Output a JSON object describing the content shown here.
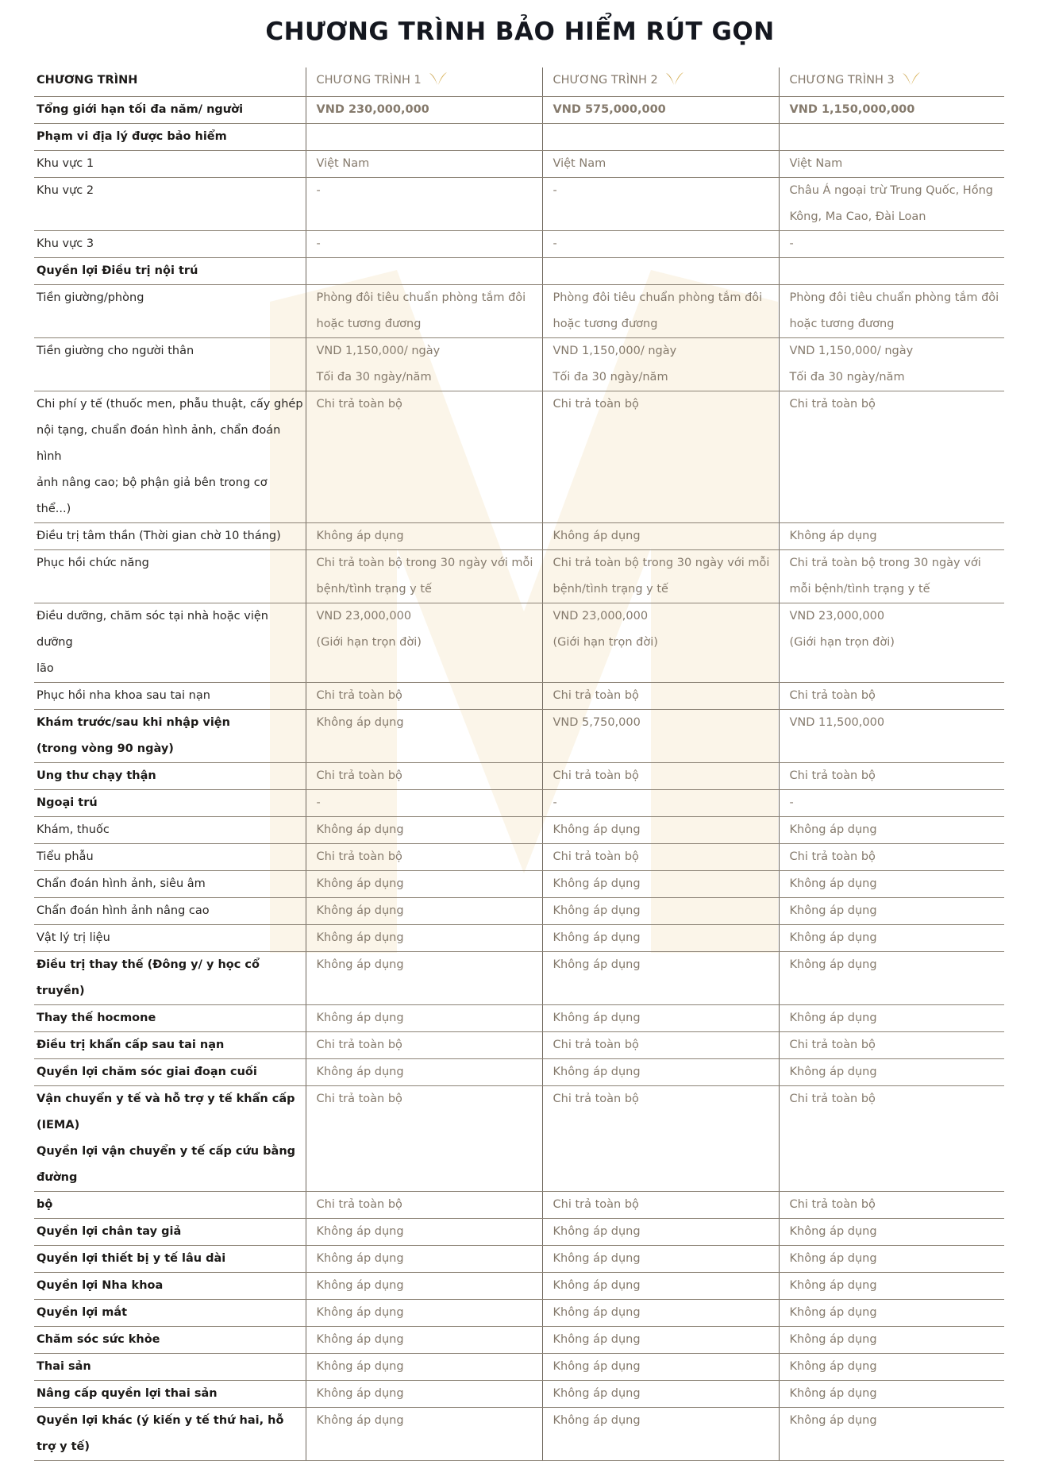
{
  "title": "CHƯƠNG TRÌNH BẢO HIỂM RÚT GỌN",
  "accent_color": "#c9a24a",
  "header": {
    "label": "CHƯƠNG TRÌNH",
    "plans": [
      "CHƯƠNG TRÌNH 1",
      "CHƯƠNG TRÌNH 2",
      "CHƯƠNG TRÌNH 3"
    ],
    "icon": "gold-wings-icon"
  },
  "rows": [
    {
      "label": "Tổng giới hạn tối đa năm/ người",
      "bold": true,
      "valbold": true,
      "values": [
        "VND 230,000,000",
        "VND 575,000,000",
        "VND 1,150,000,000"
      ]
    },
    {
      "label": "Phạm vi địa lý được bảo hiểm",
      "bold": true,
      "values": [
        "",
        "",
        ""
      ]
    },
    {
      "label": "Khu vực 1",
      "values": [
        "Việt Nam",
        "Việt Nam",
        "Việt Nam"
      ]
    },
    {
      "label": "Khu vực 2",
      "values": [
        "-",
        "-",
        "Châu Á ngoại trừ Trung Quốc, Hồng\nKông, Ma Cao, Đài Loan"
      ]
    },
    {
      "label": "Khu vực 3",
      "values": [
        "-",
        "-",
        "-"
      ]
    },
    {
      "label": "Quyền lợi Điều trị nội trú",
      "bold": true,
      "values": [
        "",
        "",
        ""
      ]
    },
    {
      "label": "Tiền giường/phòng",
      "values": [
        "Phòng đôi tiêu chuẩn phòng tắm đôi\nhoặc tương đương",
        "Phòng đôi tiêu chuẩn phòng tắm đôi\nhoặc tương đương",
        "Phòng đôi tiêu chuẩn phòng tắm đôi\nhoặc tương đương"
      ]
    },
    {
      "label": "Tiền giường cho người thân",
      "values": [
        "VND 1,150,000/ ngày\nTối đa 30 ngày/năm",
        "VND 1,150,000/ ngày\nTối đa 30 ngày/năm",
        "VND 1,150,000/ ngày\nTối đa 30 ngày/năm"
      ]
    },
    {
      "label": "Chi phí y tế (thuốc men, phẫu thuật, cấy ghép\nnội tạng, chuẩn đoán hình ảnh, chẩn đoán hình\nảnh nâng cao; bộ phận giả bên trong cơ thể...)",
      "values": [
        "Chi trả toàn bộ",
        "Chi trả toàn bộ",
        "Chi trả toàn bộ"
      ]
    },
    {
      "label": "Điều trị tâm thần (Thời gian chờ 10 tháng)",
      "values": [
        "Không áp dụng",
        "Không áp dụng",
        "Không áp dụng"
      ]
    },
    {
      "label": "Phục hồi chức năng",
      "values": [
        "Chi trả toàn bộ trong 30 ngày với mỗi\nbệnh/tình trạng y tế",
        "Chi trả toàn bộ trong 30 ngày với mỗi\nbệnh/tình trạng y tế",
        "Chi trả toàn bộ trong 30 ngày với\nmỗi bệnh/tình trạng y tế"
      ]
    },
    {
      "label": "Điều dưỡng, chăm sóc tại nhà hoặc viện dưỡng\nlão",
      "values": [
        "VND 23,000,000\n(Giới hạn trọn đời)",
        "VND 23,000,000\n(Giới hạn trọn đời)",
        "VND 23,000,000\n(Giới hạn trọn đời)"
      ]
    },
    {
      "label": "Phục hồi nha khoa sau tai nạn",
      "values": [
        "Chi trả toàn bộ",
        "Chi trả toàn bộ",
        "Chi trả toàn bộ"
      ]
    },
    {
      "label": "Khám trước/sau khi nhập viện\n(trong vòng 90 ngày)",
      "bold": true,
      "values": [
        "Không áp dụng",
        "VND 5,750,000",
        "VND 11,500,000"
      ]
    },
    {
      "label": "Ung thư chạy thận",
      "bold": true,
      "values": [
        "Chi trả toàn bộ",
        "Chi trả toàn bộ",
        "Chi trả toàn bộ"
      ]
    },
    {
      "label": "Ngoại trú",
      "bold": true,
      "values": [
        "-",
        "-",
        "-"
      ]
    },
    {
      "label": "Khám, thuốc",
      "values": [
        "Không áp dụng",
        "Không áp dụng",
        "Không áp dụng"
      ]
    },
    {
      "label": "Tiểu phẫu",
      "values": [
        "Chi trả toàn bộ",
        "Chi trả toàn bộ",
        "Chi trả toàn bộ"
      ]
    },
    {
      "label": "Chẩn đoán hình ảnh, siêu âm",
      "values": [
        "Không áp dụng",
        "Không áp dụng",
        "Không áp dụng"
      ]
    },
    {
      "label": "Chẩn đoán hình ảnh nâng cao",
      "values": [
        "Không áp dụng",
        "Không áp dụng",
        "Không áp dụng"
      ]
    },
    {
      "label": "Vật lý trị liệu",
      "values": [
        "Không áp dụng",
        "Không áp dụng",
        "Không áp dụng"
      ]
    },
    {
      "label": "Điều trị thay thế (Đông y/ y học cổ truyền)",
      "bold": true,
      "values": [
        "Không áp dụng",
        "Không áp dụng",
        "Không áp dụng"
      ]
    },
    {
      "label": "Thay thế hocmone",
      "bold": true,
      "values": [
        "Không áp dụng",
        "Không áp dụng",
        "Không áp dụng"
      ]
    },
    {
      "label": "Điều trị khẩn cấp sau tai nạn",
      "bold": true,
      "values": [
        "Chi trả toàn bộ",
        "Chi trả toàn bộ",
        "Chi trả toàn bộ"
      ]
    },
    {
      "label": "Quyền lợi chăm sóc giai đoạn cuối",
      "bold": true,
      "values": [
        "Không áp dụng",
        "Không áp dụng",
        "Không áp dụng"
      ]
    },
    {
      "label": "Vận chuyển y tế và hỗ trợ y tế khẩn cấp (IEMA)\nQuyền lợi vận chuyển y tế cấp cứu bằng đường",
      "bold": true,
      "values": [
        "Chi trả toàn bộ",
        "Chi trả toàn bộ",
        "Chi trả toàn bộ"
      ]
    },
    {
      "label": "bộ",
      "bold": true,
      "values": [
        "Chi trả toàn bộ",
        "Chi trả toàn bộ",
        "Chi trả toàn bộ"
      ]
    },
    {
      "label": "Quyền lợi chân tay giả",
      "bold": true,
      "values": [
        "Không áp dụng",
        "Không áp dụng",
        "Không áp dụng"
      ]
    },
    {
      "label": "Quyền lợi thiết bị y tế lâu dài",
      "bold": true,
      "values": [
        "Không áp dụng",
        "Không áp dụng",
        "Không áp dụng"
      ]
    },
    {
      "label": " Quyền lợi Nha khoa",
      "bold": true,
      "values": [
        "Không áp dụng",
        "Không áp dụng",
        "Không áp dụng"
      ]
    },
    {
      "label": "Quyền lợi mắt",
      "bold": true,
      "values": [
        "Không áp dụng",
        "Không áp dụng",
        "Không áp dụng"
      ]
    },
    {
      "label": "Chăm sóc sức khỏe",
      "bold": true,
      "values": [
        "Không áp dụng",
        "Không áp dụng",
        "Không áp dụng"
      ]
    },
    {
      "label": "Thai sản",
      "bold": true,
      "values": [
        "Không áp dụng",
        "Không áp dụng",
        "Không áp dụng"
      ]
    },
    {
      "label": "Nâng cấp quyền lợi thai sản",
      "bold": true,
      "values": [
        "Không áp dụng",
        "Không áp dụng",
        "Không áp dụng"
      ]
    },
    {
      "label": "Quyền lợi khác (ý kiến y tế thứ hai, hỗ trợ y tế)",
      "bold": true,
      "values": [
        "Không áp dụng",
        "Không áp dụng",
        "Không áp dụng"
      ]
    }
  ]
}
